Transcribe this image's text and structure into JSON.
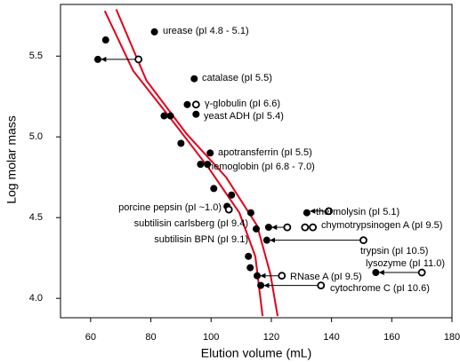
{
  "chart_data": {
    "type": "scatter",
    "xlabel": "Elution volume (mL)",
    "ylabel": "Log molar mass",
    "xlim": [
      50,
      180
    ],
    "ylim": [
      3.88,
      5.82
    ],
    "xticks": [
      60,
      80,
      100,
      120,
      140,
      160,
      180
    ],
    "yticks": [
      {
        "value": 4.0,
        "label": "4.0"
      },
      4.5,
      {
        "value": 5.0,
        "label": "5.0"
      },
      5.5
    ],
    "line_color": "#e3001b",
    "curves": [
      {
        "x": [
          64.7,
          74.1,
          85.9,
          99.1,
          109.4,
          114.7,
          117.1
        ],
        "y": [
          5.78,
          5.41,
          5.13,
          4.81,
          4.53,
          4.26,
          3.89
        ]
      },
      {
        "x": [
          68.5,
          78.5,
          91.8,
          105,
          115.3,
          119.7,
          122.1
        ],
        "y": [
          5.79,
          5.35,
          5.02,
          4.75,
          4.45,
          4.15,
          3.89
        ]
      }
    ],
    "filled": {
      "x": [
        65,
        81.2,
        62.4,
        94.4,
        92.1,
        95,
        84.4,
        86.5,
        90,
        99.7,
        96.5,
        98.8,
        100.9,
        106.8,
        105.3,
        113.2,
        115,
        119.1,
        131.8,
        118.5,
        154.7,
        112.4,
        113,
        115.3,
        116.5
      ],
      "y": [
        5.6,
        5.65,
        5.48,
        5.36,
        5.2,
        5.14,
        5.13,
        5.13,
        4.96,
        4.9,
        4.83,
        4.83,
        4.68,
        4.64,
        4.57,
        4.53,
        4.43,
        4.44,
        4.53,
        4.36,
        4.16,
        4.26,
        4.19,
        4.14,
        4.08
      ]
    },
    "open": {
      "x": [
        75.9,
        95,
        105.9,
        139.1,
        125.3,
        131.2,
        133.8,
        150.6,
        170,
        123.5,
        136.5
      ],
      "y": [
        5.48,
        5.2,
        4.55,
        4.54,
        4.44,
        4.44,
        4.44,
        4.36,
        4.16,
        4.14,
        4.08
      ]
    },
    "arrows": {
      "x_from": [
        75.9,
        125.3,
        150.6,
        170,
        123.5,
        136.5,
        139.1
      ],
      "x_to": [
        62.4,
        119.1,
        118.5,
        154.7,
        115.3,
        116.5,
        131.8
      ],
      "y": [
        5.48,
        4.44,
        4.36,
        4.16,
        4.14,
        4.08,
        4.54
      ]
    },
    "annotations": [
      "urease (pI 4.8 - 5.1)",
      "catalase (pI 5.5)",
      "γ-globulin (pI 6.6)",
      "yeast ADH (pI 5.4)",
      "apotransferrin (pI 5.5)",
      "hemoglobin (pI 6.8 - 7.0)",
      "porcine pepsin (pI ~1.0)",
      "subtilisin carlsberg (pI 9.4)",
      "subtilisin BPN (pI 9.1)",
      "thermolysin (pI 5.1)",
      "chymotrypsinogen A (pI 9.5)",
      "trypsin (pI 10.5)",
      "lysozyme (pI 11.0)",
      "RNase A (pI 9.5)",
      "cytochrome C (pI 10.6)"
    ]
  }
}
